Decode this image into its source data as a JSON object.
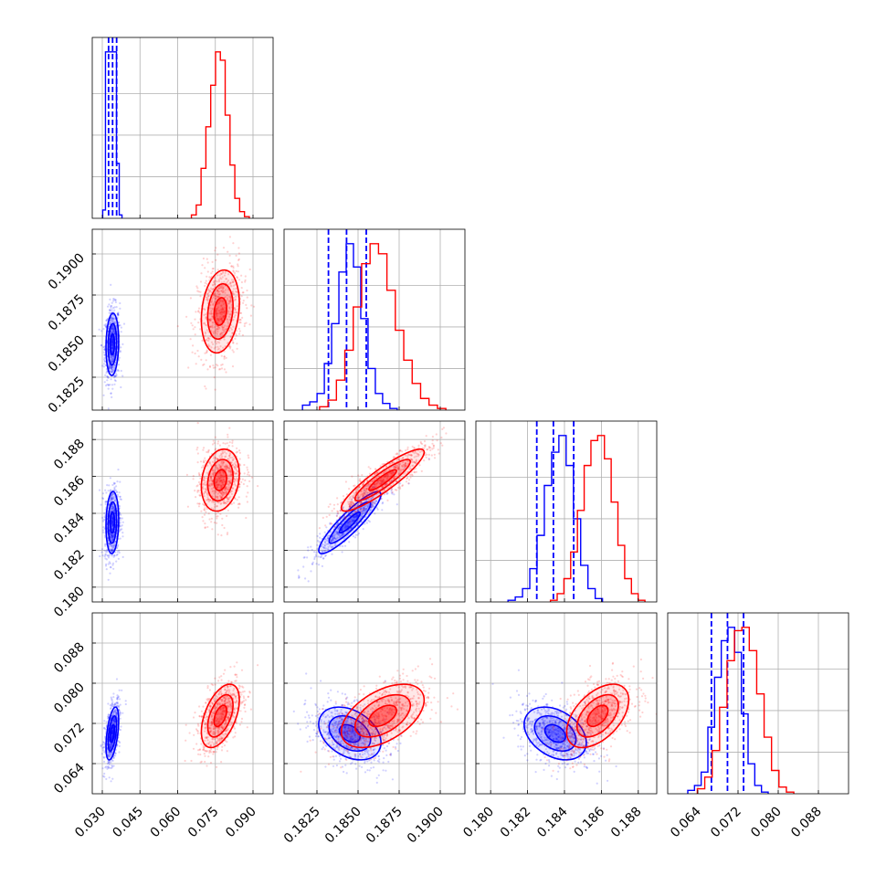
{
  "figure": {
    "type": "corner-plot",
    "colors": {
      "series_a": "#0000ff",
      "series_b": "#ff0000",
      "grid": "#b0b0b0",
      "axes": "#000000"
    }
  },
  "chart_data": {
    "type": "corner",
    "parameters": [
      {
        "key": "p0",
        "range": [
          0.026,
          0.098
        ],
        "ticks": [
          "0.030",
          "0.045",
          "0.060",
          "0.075",
          "0.090"
        ],
        "tick_values": [
          0.03,
          0.045,
          0.06,
          0.075,
          0.09
        ]
      },
      {
        "key": "p1",
        "range": [
          0.1805,
          0.1915
        ],
        "ticks": [
          "0.1825",
          "0.1850",
          "0.1875",
          "0.1900"
        ],
        "tick_values": [
          0.1825,
          0.185,
          0.1875,
          0.19
        ]
      },
      {
        "key": "p2",
        "range": [
          0.1792,
          0.189
        ],
        "ticks": [
          "0.180",
          "0.182",
          "0.184",
          "0.186",
          "0.188"
        ],
        "tick_values": [
          0.18,
          0.182,
          0.184,
          0.186,
          0.188
        ]
      },
      {
        "key": "p3",
        "range": [
          0.058,
          0.094
        ],
        "ticks": [
          "0.064",
          "0.072",
          "0.080",
          "0.088"
        ],
        "tick_values": [
          0.064,
          0.072,
          0.08,
          0.088
        ]
      }
    ],
    "series": [
      {
        "key": "blue",
        "color": "#0000ff",
        "mean": [
          0.034,
          0.1845,
          0.1835,
          0.07
        ],
        "std": [
          0.0012,
          0.0009,
          0.0008,
          0.0025
        ],
        "quantiles": [
          [
            0.0325,
            0.0341,
            0.0357
          ],
          [
            0.1832,
            0.1843,
            0.1855
          ],
          [
            0.1825,
            0.1834,
            0.1845
          ],
          [
            0.0667,
            0.0699,
            0.0731
          ]
        ],
        "hist": [
          [
            0.05,
            1.0,
            1.0,
            1.0,
            1.0,
            0.33,
            0.02
          ],
          [
            0.03,
            0.05,
            0.1,
            0.28,
            0.52,
            0.83,
            1.0,
            0.86,
            0.55,
            0.25,
            0.1,
            0.04,
            0.01
          ],
          [
            0.01,
            0.03,
            0.08,
            0.2,
            0.4,
            0.7,
            0.9,
            1.0,
            0.82,
            0.5,
            0.22,
            0.08,
            0.02
          ],
          [
            0.02,
            0.05,
            0.13,
            0.4,
            0.7,
            0.92,
            1.0,
            0.85,
            0.48,
            0.18,
            0.05,
            0.01
          ]
        ]
      },
      {
        "key": "red",
        "color": "#ff0000",
        "mean": [
          0.077,
          0.1865,
          0.1858,
          0.0735
        ],
        "std": [
          0.0036,
          0.0012,
          0.0008,
          0.003
        ],
        "quantiles": null,
        "hist": [
          [
            0.02,
            0.08,
            0.3,
            0.55,
            0.8,
            1.0,
            0.95,
            0.62,
            0.32,
            0.12,
            0.04,
            0.01
          ],
          [
            0.02,
            0.06,
            0.18,
            0.36,
            0.62,
            0.88,
            1.0,
            0.94,
            0.72,
            0.48,
            0.3,
            0.16,
            0.07,
            0.03,
            0.01
          ],
          [
            0.01,
            0.05,
            0.14,
            0.3,
            0.55,
            0.82,
            0.97,
            1.0,
            0.86,
            0.6,
            0.34,
            0.14,
            0.05,
            0.01
          ],
          [
            0.03,
            0.1,
            0.26,
            0.52,
            0.8,
            0.98,
            1.0,
            0.86,
            0.6,
            0.34,
            0.14,
            0.04,
            0.01
          ]
        ]
      }
    ],
    "correlations": {
      "blue": {
        "1-0": 0.1,
        "2-0": 0.1,
        "2-1": 0.9,
        "3-0": 0.5,
        "3-1": -0.35,
        "3-2": -0.35
      },
      "red": {
        "1-0": 0.2,
        "2-0": 0.2,
        "2-1": 0.9,
        "3-0": 0.5,
        "3-1": 0.5,
        "3-2": 0.5
      }
    },
    "contour_levels_sigma": [
      0.5,
      1.0,
      1.5
    ],
    "grid": true
  }
}
